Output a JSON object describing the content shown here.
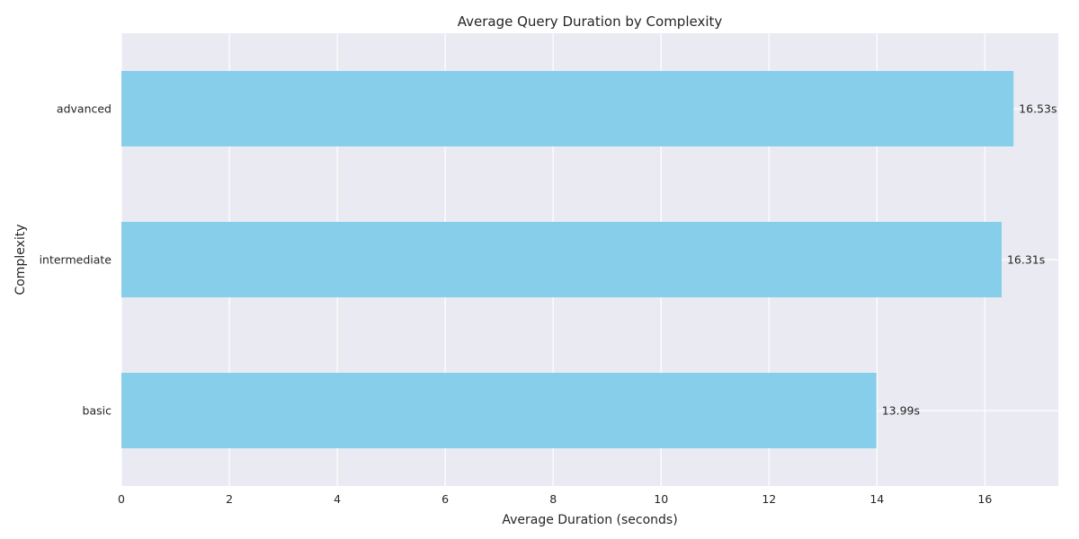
{
  "chart_data": {
    "type": "bar",
    "orientation": "horizontal",
    "title": "Average Query Duration by Complexity",
    "xlabel": "Average Duration (seconds)",
    "ylabel": "Complexity",
    "categories": [
      "basic",
      "intermediate",
      "advanced"
    ],
    "values": [
      13.99,
      16.31,
      16.53
    ],
    "data_labels": [
      "13.99s",
      "16.31s",
      "16.53s"
    ],
    "xlim": [
      0,
      17.36
    ],
    "xticks": [
      0,
      2,
      4,
      6,
      8,
      10,
      12,
      14,
      16
    ],
    "grid": true,
    "legend": "none",
    "colors": {
      "bar": "#87ceeb",
      "plot_background": "#eaeaf2",
      "grid": "#ffffff",
      "text": "#262626"
    }
  }
}
